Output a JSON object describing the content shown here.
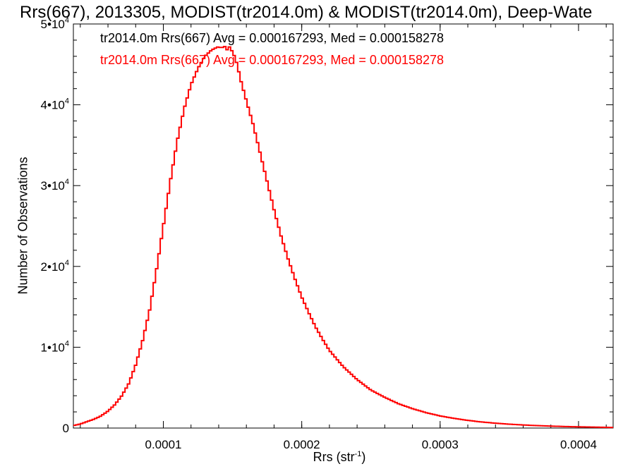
{
  "chart_data": {
    "type": "histogram",
    "title": "Rrs(667), 2013305, MODIST(tr2014.0m) & MODIST(tr2014.0m), Deep-Wate",
    "xlabel": "Rrs (str",
    "xlabel_exponent": "-1",
    "xlabel_suffix": ")",
    "ylabel": "Number of Observations",
    "xlim": [
      3.5e-05,
      0.000425
    ],
    "ylim": [
      0,
      50000
    ],
    "x_ticks": [
      {
        "value": 0.0001,
        "label": "0.0001"
      },
      {
        "value": 0.0002,
        "label": "0.0002"
      },
      {
        "value": 0.0003,
        "label": "0.0003"
      },
      {
        "value": 0.0004,
        "label": "0.0004"
      }
    ],
    "y_ticks": [
      {
        "value": 0,
        "mantissa": "0",
        "exponent": ""
      },
      {
        "value": 10000,
        "mantissa": "1•10",
        "exponent": "4"
      },
      {
        "value": 20000,
        "mantissa": "2•10",
        "exponent": "4"
      },
      {
        "value": 30000,
        "mantissa": "3•10",
        "exponent": "4"
      },
      {
        "value": 40000,
        "mantissa": "4•10",
        "exponent": "4"
      },
      {
        "value": 50000,
        "mantissa": "5•10",
        "exponent": "4"
      }
    ],
    "legend": [
      {
        "text": "tr2014.0m Rrs(667) Avg = 0.000167293, Med = 0.000158278",
        "color": "#000000"
      },
      {
        "text": "tr2014.0m Rrs(667) Avg = 0.000167293, Med = 0.000158278",
        "color": "#ff0000"
      }
    ],
    "series": [
      {
        "color": "#ff0000",
        "x": [
          3.5e-05,
          4e-05,
          4.5e-05,
          5e-05,
          5.5e-05,
          6e-05,
          6.5e-05,
          7e-05,
          7.5e-05,
          8e-05,
          8.5e-05,
          9e-05,
          9.5e-05,
          0.0001,
          0.000105,
          0.00011,
          0.000115,
          0.00012,
          0.000125,
          0.00013,
          0.000135,
          0.00014,
          0.000142,
          0.000144,
          0.000146,
          0.000148,
          0.00015,
          0.000152,
          0.000154,
          0.000156,
          0.00016,
          0.000165,
          0.00017,
          0.000175,
          0.00018,
          0.000185,
          0.00019,
          0.000195,
          0.0002,
          0.000205,
          0.00021,
          0.000215,
          0.00022,
          0.00023,
          0.00024,
          0.00025,
          0.00026,
          0.00027,
          0.00028,
          0.00029,
          0.0003,
          0.00031,
          0.00032,
          0.00033,
          0.00034,
          0.00035,
          0.00036,
          0.00037,
          0.00038,
          0.00039,
          0.0004,
          0.00041,
          0.00042,
          0.000425
        ],
        "y": [
          300,
          500,
          800,
          1100,
          1500,
          2100,
          2900,
          4000,
          5500,
          7800,
          10800,
          14500,
          19500,
          25000,
          30500,
          35500,
          39500,
          42500,
          44500,
          46000,
          46800,
          47200,
          47000,
          47300,
          46800,
          47200,
          46500,
          45800,
          44500,
          43000,
          40500,
          37500,
          34000,
          30500,
          27000,
          23800,
          21000,
          18500,
          16200,
          14300,
          12500,
          11000,
          9600,
          7600,
          6000,
          4700,
          3800,
          3000,
          2400,
          1900,
          1500,
          1200,
          950,
          750,
          600,
          480,
          380,
          300,
          240,
          190,
          150,
          120,
          90,
          70
        ]
      }
    ],
    "grid": false
  }
}
